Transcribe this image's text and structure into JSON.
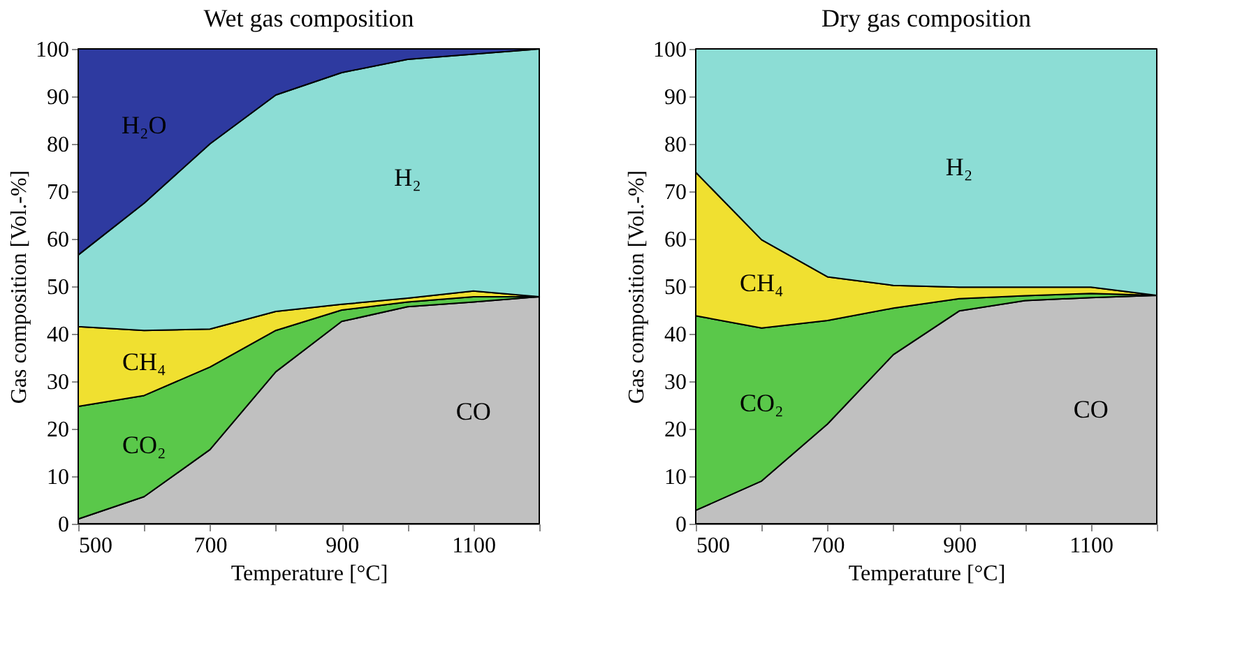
{
  "chart_data": [
    {
      "type": "area",
      "stacked": true,
      "title": "Wet gas composition",
      "xlabel": "Temperature [°C]",
      "ylabel": "Gas composition [Vol.-%]",
      "x": [
        500,
        600,
        700,
        800,
        900,
        1000,
        1100,
        1200
      ],
      "series": [
        {
          "name": "CO",
          "color": "#c0c0c0",
          "values": [
            1,
            5.7,
            15.6,
            32,
            42.6,
            45.7,
            46.7,
            47.8
          ]
        },
        {
          "name": "CO₂",
          "color": "#5ac84a",
          "values": [
            23.7,
            21.3,
            17.4,
            8.7,
            2.4,
            1,
            1.1,
            0
          ]
        },
        {
          "name": "CH₄",
          "color": "#f0e030",
          "values": [
            16.8,
            13.7,
            8,
            4,
            1.2,
            0.8,
            1.2,
            0
          ]
        },
        {
          "name": "H₂",
          "color": "#8cddd5",
          "values": [
            15.1,
            26.8,
            39,
            45.6,
            48.8,
            50.3,
            49.9,
            52.2
          ]
        },
        {
          "name": "H₂O",
          "color": "#2e3aa0",
          "values": [
            43.4,
            32.5,
            20,
            9.7,
            5,
            2.2,
            1.1,
            0
          ]
        }
      ],
      "xlim": [
        500,
        1200
      ],
      "xticks": [
        500,
        {
          "value": 600,
          "label": null
        },
        700,
        {
          "value": 800,
          "label": null
        },
        900,
        {
          "value": 1000,
          "label": null
        },
        1100,
        {
          "value": 1200,
          "label": null
        }
      ],
      "ylim": [
        0,
        100
      ],
      "yticks": [
        0,
        10,
        20,
        30,
        40,
        50,
        60,
        70,
        80,
        90,
        100
      ]
    },
    {
      "type": "area",
      "stacked": true,
      "title": "Dry gas composition",
      "xlabel": "Temperature [°C]",
      "ylabel": "Gas composition [Vol.-%]",
      "x": [
        500,
        600,
        700,
        800,
        900,
        1000,
        1100,
        1200
      ],
      "series": [
        {
          "name": "CO",
          "color": "#c0c0c0",
          "values": [
            2.8,
            9,
            21,
            35.6,
            44.8,
            47,
            47.6,
            48.1
          ]
        },
        {
          "name": "CO₂",
          "color": "#5ac84a",
          "values": [
            41,
            32.2,
            21.8,
            9.8,
            2.6,
            1,
            0.9,
            0
          ]
        },
        {
          "name": "CH₄",
          "color": "#f0e030",
          "values": [
            30.2,
            18.6,
            9.2,
            4.8,
            2.4,
            1.8,
            1.3,
            0
          ]
        },
        {
          "name": "H₂",
          "color": "#8cddd5",
          "values": [
            26,
            40.2,
            48,
            49.8,
            50.2,
            50.2,
            50.2,
            51.9
          ]
        }
      ],
      "xlim": [
        500,
        1200
      ],
      "xticks": [
        500,
        {
          "value": 600,
          "label": null
        },
        700,
        {
          "value": 800,
          "label": null
        },
        900,
        {
          "value": 1000,
          "label": null
        },
        1100,
        {
          "value": 1200,
          "label": null
        }
      ],
      "ylim": [
        0,
        100
      ],
      "yticks": [
        0,
        10,
        20,
        30,
        40,
        50,
        60,
        70,
        80,
        90,
        100
      ]
    }
  ]
}
